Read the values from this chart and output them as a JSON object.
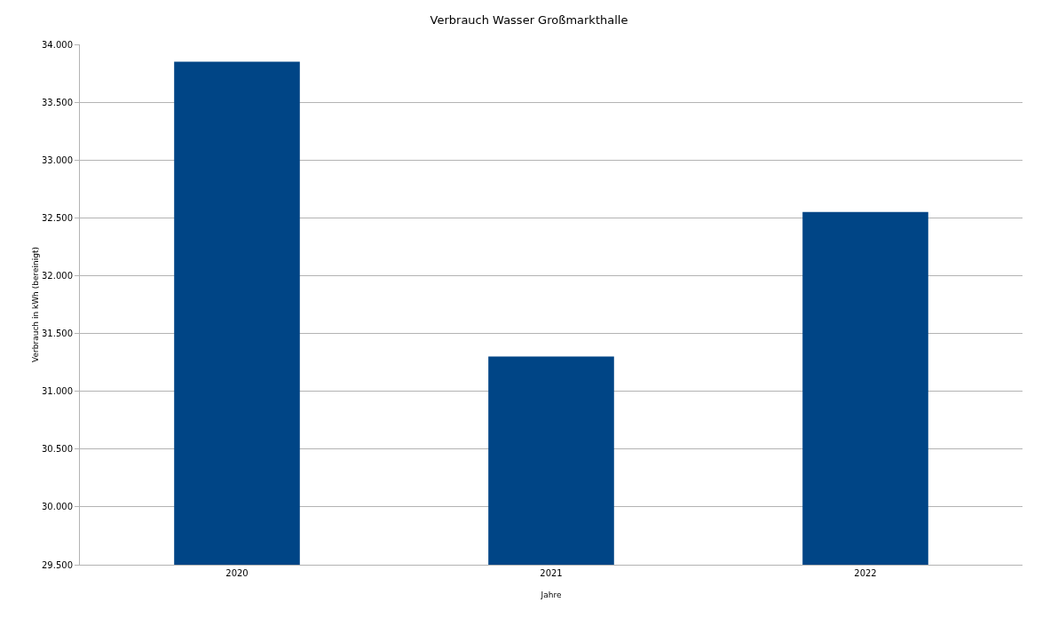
{
  "chart_data": {
    "type": "bar",
    "title": "Verbrauch Wasser Großmarkthalle",
    "xlabel": "Jahre",
    "ylabel": "Verbrauch in kWh (bereinigt)",
    "categories": [
      "2020",
      "2021",
      "2022"
    ],
    "values": [
      33850,
      31300,
      32550
    ],
    "color": "#004586",
    "ylim": [
      29500,
      34000
    ],
    "yticks": [
      {
        "value": 29500,
        "label": "29.500"
      },
      {
        "value": 30000,
        "label": "30.000"
      },
      {
        "value": 30500,
        "label": "30.500"
      },
      {
        "value": 31000,
        "label": "31.000"
      },
      {
        "value": 31500,
        "label": "31.500"
      },
      {
        "value": 32000,
        "label": "32.000"
      },
      {
        "value": 32500,
        "label": "32.500"
      },
      {
        "value": 33000,
        "label": "33.000"
      },
      {
        "value": 33500,
        "label": "33.500"
      },
      {
        "value": 34000,
        "label": "34.000"
      }
    ],
    "grid": "y"
  }
}
